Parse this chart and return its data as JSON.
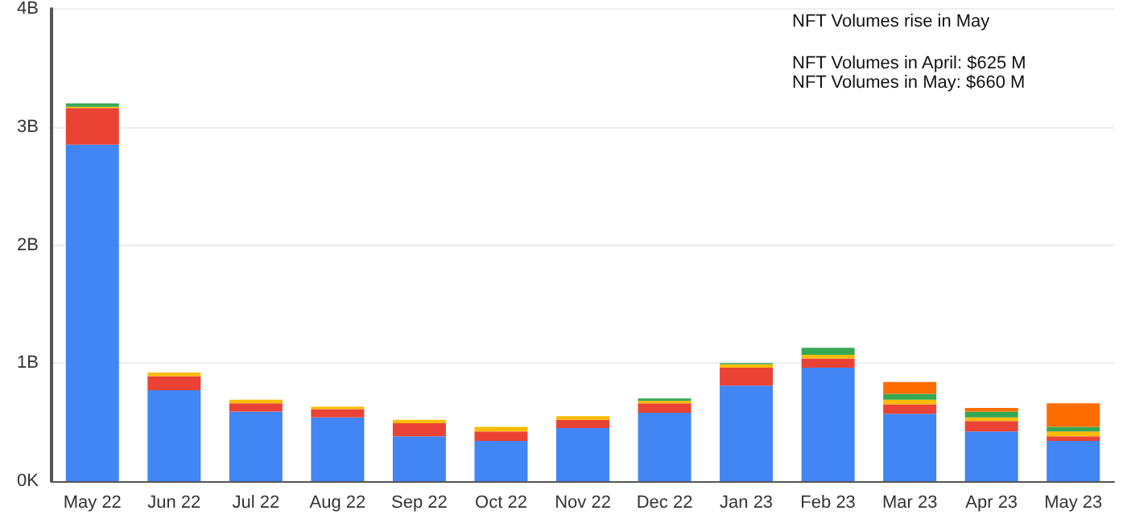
{
  "chart_data": {
    "type": "bar",
    "stacked": true,
    "grid": "y",
    "categories": [
      "May 22",
      "Jun 22",
      "Jul 22",
      "Aug 22",
      "Sep 22",
      "Oct 22",
      "Nov 22",
      "Dec 22",
      "Jan 23",
      "Feb 23",
      "Mar 23",
      "Apr 23",
      "May 23"
    ],
    "series": [
      {
        "color": "#4285f4",
        "values": [
          2.85,
          0.77,
          0.59,
          0.54,
          0.38,
          0.34,
          0.45,
          0.58,
          0.81,
          0.96,
          0.57,
          0.42,
          0.34
        ]
      },
      {
        "color": "#ea4335",
        "values": [
          0.31,
          0.12,
          0.07,
          0.07,
          0.11,
          0.08,
          0.07,
          0.08,
          0.15,
          0.08,
          0.08,
          0.09,
          0.04
        ]
      },
      {
        "color": "#fbbc04",
        "values": [
          0.01,
          0.03,
          0.03,
          0.02,
          0.03,
          0.04,
          0.03,
          0.02,
          0.03,
          0.03,
          0.04,
          0.03,
          0.04
        ]
      },
      {
        "color": "#34a853",
        "values": [
          0.03,
          0,
          0,
          0,
          0,
          0,
          0,
          0.02,
          0.01,
          0.06,
          0.05,
          0.05,
          0.04
        ]
      },
      {
        "color": "#ff6d01",
        "values": [
          0,
          0,
          0,
          0,
          0,
          0,
          0,
          0,
          0,
          0,
          0.1,
          0.03,
          0.2
        ]
      }
    ],
    "ylim": [
      0,
      4
    ],
    "yticks": [
      {
        "value": 0,
        "label": "0K"
      },
      {
        "value": 1,
        "label": "1B"
      },
      {
        "value": 2,
        "label": "2B"
      },
      {
        "value": 3,
        "label": "3B"
      },
      {
        "value": 4,
        "label": "4B"
      }
    ],
    "annotations": [
      "NFT Volumes rise in May",
      "NFT Volumes in April: $625 M",
      "NFT Volumes in May: $660 M"
    ]
  }
}
